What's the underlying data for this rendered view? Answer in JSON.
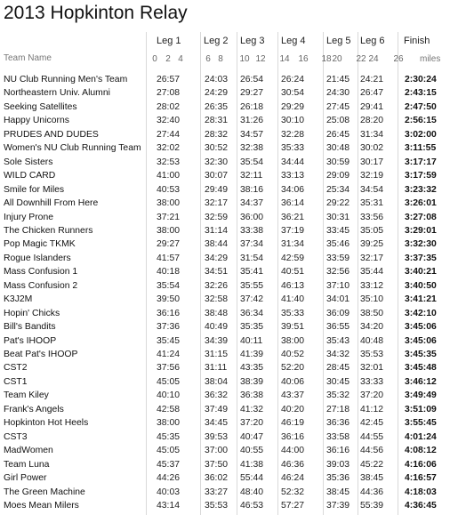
{
  "title": "2013 Hopkinton Relay",
  "team_header": "Team Name",
  "legs": [
    "Leg 1",
    "Leg 2",
    "Leg 3",
    "Leg 4",
    "Leg 5",
    "Leg 6"
  ],
  "finish_header": "Finish",
  "axis_ticks": [
    "0",
    "2",
    "4",
    "6",
    "8",
    "10",
    "12",
    "14",
    "16",
    "18",
    "20",
    "22",
    "24",
    "26"
  ],
  "axis_unit": "miles",
  "chart_data": {
    "type": "table",
    "title": "2013 Hopkinton Relay",
    "columns": [
      "Team Name",
      "Leg 1",
      "Leg 2",
      "Leg 3",
      "Leg 4",
      "Leg 5",
      "Leg 6",
      "Finish"
    ],
    "x_axis": {
      "ticks": [
        0,
        2,
        4,
        6,
        8,
        10,
        12,
        14,
        16,
        18,
        20,
        22,
        24,
        26
      ],
      "unit": "miles"
    },
    "rows": [
      {
        "team": "NU Club Running Men's Team",
        "legs": [
          "26:57",
          "24:03",
          "26:54",
          "26:24",
          "21:45",
          "24:21"
        ],
        "finish": "2:30:24"
      },
      {
        "team": "Northeastern Univ. Alumni",
        "legs": [
          "27:08",
          "24:29",
          "29:27",
          "30:54",
          "24:30",
          "26:47"
        ],
        "finish": "2:43:15"
      },
      {
        "team": "Seeking Satellites",
        "legs": [
          "28:02",
          "26:35",
          "26:18",
          "29:29",
          "27:45",
          "29:41"
        ],
        "finish": "2:47:50"
      },
      {
        "team": "Happy Unicorns",
        "legs": [
          "32:40",
          "28:31",
          "31:26",
          "30:10",
          "25:08",
          "28:20"
        ],
        "finish": "2:56:15"
      },
      {
        "team": "PRUDES AND DUDES",
        "legs": [
          "27:44",
          "28:32",
          "34:57",
          "32:28",
          "26:45",
          "31:34"
        ],
        "finish": "3:02:00"
      },
      {
        "team": "Women's NU Club Running Team",
        "legs": [
          "32:02",
          "30:52",
          "32:38",
          "35:33",
          "30:48",
          "30:02"
        ],
        "finish": "3:11:55"
      },
      {
        "team": "Sole Sisters",
        "legs": [
          "32:53",
          "32:30",
          "35:54",
          "34:44",
          "30:59",
          "30:17"
        ],
        "finish": "3:17:17"
      },
      {
        "team": "WILD CARD",
        "legs": [
          "41:00",
          "30:07",
          "32:11",
          "33:13",
          "29:09",
          "32:19"
        ],
        "finish": "3:17:59"
      },
      {
        "team": "Smile for Miles",
        "legs": [
          "40:53",
          "29:49",
          "38:16",
          "34:06",
          "25:34",
          "34:54"
        ],
        "finish": "3:23:32"
      },
      {
        "team": "All Downhill From Here",
        "legs": [
          "38:00",
          "32:17",
          "34:37",
          "36:14",
          "29:22",
          "35:31"
        ],
        "finish": "3:26:01"
      },
      {
        "team": "Injury Prone",
        "legs": [
          "37:21",
          "32:59",
          "36:00",
          "36:21",
          "30:31",
          "33:56"
        ],
        "finish": "3:27:08"
      },
      {
        "team": "The Chicken Runners",
        "legs": [
          "38:00",
          "31:14",
          "33:38",
          "37:19",
          "33:45",
          "35:05"
        ],
        "finish": "3:29:01"
      },
      {
        "team": "Pop Magic TKMK",
        "legs": [
          "29:27",
          "38:44",
          "37:34",
          "31:34",
          "35:46",
          "39:25"
        ],
        "finish": "3:32:30"
      },
      {
        "team": "Rogue Islanders",
        "legs": [
          "41:57",
          "34:29",
          "31:54",
          "42:59",
          "33:59",
          "32:17"
        ],
        "finish": "3:37:35"
      },
      {
        "team": "Mass Confusion 1",
        "legs": [
          "40:18",
          "34:51",
          "35:41",
          "40:51",
          "32:56",
          "35:44"
        ],
        "finish": "3:40:21"
      },
      {
        "team": "Mass Confusion 2",
        "legs": [
          "35:54",
          "32:26",
          "35:55",
          "46:13",
          "37:10",
          "33:12"
        ],
        "finish": "3:40:50"
      },
      {
        "team": "K3J2M",
        "legs": [
          "39:50",
          "32:58",
          "37:42",
          "41:40",
          "34:01",
          "35:10"
        ],
        "finish": "3:41:21"
      },
      {
        "team": "Hopin' Chicks",
        "legs": [
          "36:16",
          "38:48",
          "36:34",
          "35:33",
          "36:09",
          "38:50"
        ],
        "finish": "3:42:10"
      },
      {
        "team": "Bill's Bandits",
        "legs": [
          "37:36",
          "40:49",
          "35:35",
          "39:51",
          "36:55",
          "34:20"
        ],
        "finish": "3:45:06"
      },
      {
        "team": "Pat's IHOOP",
        "legs": [
          "35:45",
          "34:39",
          "40:11",
          "38:00",
          "35:43",
          "40:48"
        ],
        "finish": "3:45:06"
      },
      {
        "team": "Beat Pat's IHOOP",
        "legs": [
          "41:24",
          "31:15",
          "41:39",
          "40:52",
          "34:32",
          "35:53"
        ],
        "finish": "3:45:35"
      },
      {
        "team": "CST2",
        "legs": [
          "37:56",
          "31:11",
          "43:35",
          "52:20",
          "28:45",
          "32:01"
        ],
        "finish": "3:45:48"
      },
      {
        "team": "CST1",
        "legs": [
          "45:05",
          "38:04",
          "38:39",
          "40:06",
          "30:45",
          "33:33"
        ],
        "finish": "3:46:12"
      },
      {
        "team": "Team Kiley",
        "legs": [
          "40:10",
          "36:32",
          "36:38",
          "43:37",
          "35:32",
          "37:20"
        ],
        "finish": "3:49:49"
      },
      {
        "team": "Frank's Angels",
        "legs": [
          "42:58",
          "37:49",
          "41:32",
          "40:20",
          "27:18",
          "41:12"
        ],
        "finish": "3:51:09"
      },
      {
        "team": "Hopkinton Hot Heels",
        "legs": [
          "38:00",
          "34:45",
          "37:20",
          "46:19",
          "36:36",
          "42:45"
        ],
        "finish": "3:55:45"
      },
      {
        "team": "CST3",
        "legs": [
          "45:35",
          "39:53",
          "40:47",
          "36:16",
          "33:58",
          "44:55"
        ],
        "finish": "4:01:24"
      },
      {
        "team": "MadWomen",
        "legs": [
          "45:05",
          "37:00",
          "40:55",
          "44:00",
          "36:16",
          "44:56"
        ],
        "finish": "4:08:12"
      },
      {
        "team": "Team Luna",
        "legs": [
          "45:37",
          "37:50",
          "41:38",
          "46:36",
          "39:03",
          "45:22"
        ],
        "finish": "4:16:06"
      },
      {
        "team": "Girl Power",
        "legs": [
          "44:26",
          "36:02",
          "55:44",
          "46:24",
          "35:36",
          "38:45"
        ],
        "finish": "4:16:57"
      },
      {
        "team": "The Green Machine",
        "legs": [
          "40:03",
          "33:27",
          "48:40",
          "52:32",
          "38:45",
          "44:36"
        ],
        "finish": "4:18:03"
      },
      {
        "team": "Moes Mean Milers",
        "legs": [
          "43:14",
          "35:53",
          "46:53",
          "57:27",
          "37:39",
          "55:39"
        ],
        "finish": "4:36:45"
      }
    ]
  }
}
